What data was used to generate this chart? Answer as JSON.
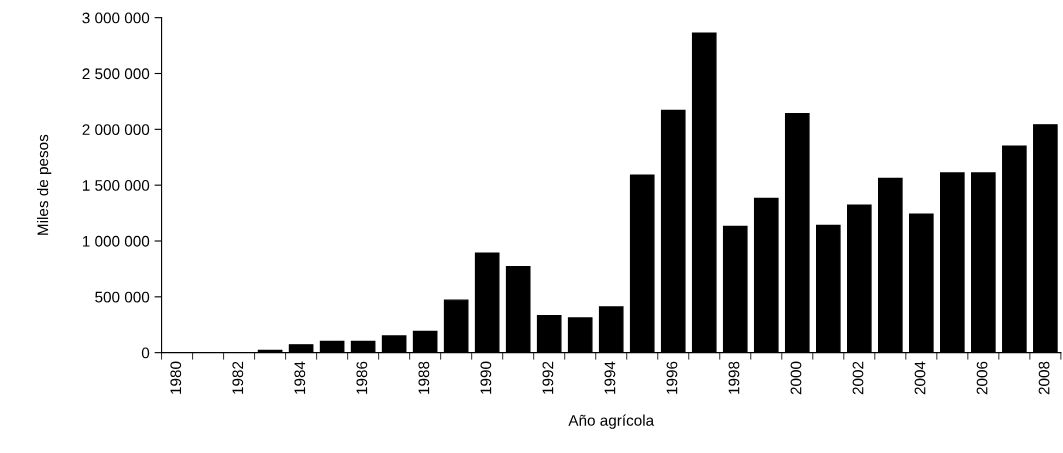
{
  "chart_data": {
    "type": "bar",
    "xlabel": "Año agrícola",
    "ylabel": "Miles de pesos",
    "color": "#000000",
    "categories": [
      "1980",
      null,
      "1982",
      null,
      "1984",
      null,
      "1986",
      null,
      "1988",
      null,
      "1990",
      null,
      "1992",
      null,
      "1994",
      null,
      "1996",
      null,
      "1998",
      null,
      "2000",
      null,
      "2002",
      null,
      "2004",
      null,
      "2006",
      null,
      "2008"
    ],
    "values": [
      0,
      0,
      0,
      20000,
      70000,
      100000,
      100000,
      150000,
      190000,
      470000,
      890000,
      770000,
      330000,
      310000,
      410000,
      1590000,
      2170000,
      2860000,
      1130000,
      1380000,
      2140000,
      1140000,
      1320000,
      1560000,
      1240000,
      1610000,
      1610000,
      1850000,
      2040000
    ],
    "ylim": [
      0,
      3000000
    ],
    "yticks": [
      0,
      {
        "value": 500000,
        "label": "500 000"
      },
      {
        "value": 1000000,
        "label": "1 000 000"
      },
      {
        "value": 1500000,
        "label": "1 500 000"
      },
      {
        "value": 2000000,
        "label": "2 000 000"
      },
      {
        "value": 2500000,
        "label": "2 500 000"
      },
      {
        "value": 3000000,
        "label": "3 000 000"
      }
    ],
    "grid": false,
    "legend": false
  }
}
